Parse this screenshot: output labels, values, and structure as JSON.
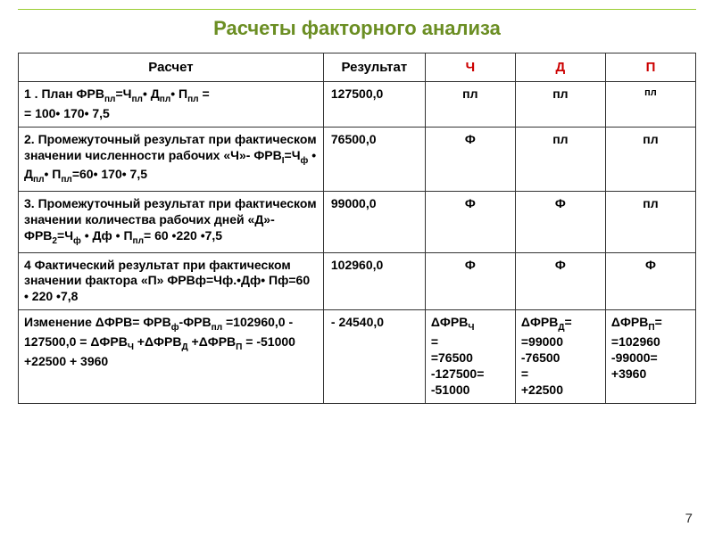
{
  "title": "Расчеты факторного анализа",
  "page_number": "7",
  "headers": {
    "calc": "Расчет",
    "result": "Результат",
    "ch": "Ч",
    "d": "Д",
    "p": "П"
  },
  "rows": [
    {
      "calc_prefix": "  1 . План ФРВ",
      "calc_sub1": "пл",
      "calc_mid1": "=Ч",
      "calc_sub2": "пл",
      "calc_mid2": "• Д",
      "calc_sub3": "пл",
      "calc_mid3": "• П",
      "calc_sub4": "пл",
      "calc_suffix": " =",
      "calc_line2": "= 100• 170• 7,5",
      "result": " 127500,0",
      "ch": "пл",
      "d": "пл",
      "p": "пл",
      "p_small": true
    },
    {
      "calc_prefix": "   2.    Промежуточный   результат при фактическом значении численности рабочих «Ч»- ФРВ",
      "calc_sub1": "I",
      "calc_mid1": "=Ч",
      "calc_sub2": "ф",
      "calc_mid2": " • Д",
      "calc_sub3": "пл",
      "calc_mid3": "• П",
      "calc_sub4": "пл",
      "calc_suffix": "=60• 170• 7,5",
      "calc_line2": "",
      "result": " 76500,0",
      "ch": "Ф",
      "d": "пл",
      "p": "пл"
    },
    {
      "calc_prefix": "   3.   Промежуточный   результат при фактическом значении количества рабочих дней «Д»- ФРВ",
      "calc_sub1": "2",
      "calc_mid1": "=Ч",
      "calc_sub2": "ф",
      "calc_mid2": " • Дф • П",
      "calc_sub3": "пл",
      "calc_mid3": "",
      "calc_sub4": "",
      "calc_suffix": "= 60 •220 •7,5",
      "calc_line2": "",
      "result": " 99000,0",
      "ch": "Ф",
      "d": "Ф",
      "p": "пл"
    },
    {
      "calc_prefix": "   4  Фактический  результат  при фактическом  значении фактора «П» ФРВф=Чф.•Дф• Пф=60 • 220 •7,8",
      "calc_sub1": "",
      "calc_mid1": "",
      "calc_sub2": "",
      "calc_mid2": "",
      "calc_sub3": "",
      "calc_mid3": "",
      "calc_sub4": "",
      "calc_suffix": "",
      "calc_line2": "",
      "result": " 102960,0",
      "ch": "Ф",
      "d": "Ф",
      "p": "Ф"
    }
  ],
  "footer": {
    "calc_prefix": "Изменение  ΔФРВ= ФРВ",
    "calc_sub1": "ф",
    "calc_mid1": "-ФРВ",
    "calc_sub2": "пл",
    "calc_mid2": " =102960,0 - 127500,0 = ΔФРВ",
    "calc_sub3": "Ч",
    "calc_mid3": " +ΔФРВ",
    "calc_sub4": "Д",
    "calc_mid4": " +ΔФРВ",
    "calc_sub5": "П",
    "calc_suffix": " = -51000 +22500 + 3960",
    "result": " - 24540,0",
    "ch_label": "ΔФРВ",
    "ch_sub": "Ч",
    "ch_val": " = =76500 -127500= -51000",
    "d_label": "ΔФРВ",
    "d_sub": "Д",
    "d_val": "= =99000 -76500 = +22500",
    "p_label": "ΔФРВ",
    "p_sub": "П",
    "p_val": "= =102960 -99000= +3960"
  },
  "colors": {
    "title": "#6b8e23",
    "header_red": "#cc0000",
    "divider": "#9acd32"
  }
}
